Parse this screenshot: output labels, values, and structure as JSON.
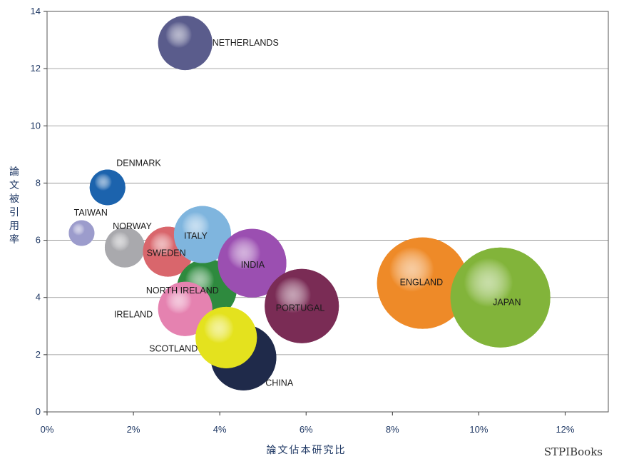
{
  "chart_data": {
    "type": "bubble",
    "xlabel": "論文佔本研究比",
    "ylabel": "論文被引用率",
    "xlim": [
      0,
      13
    ],
    "ylim": [
      0,
      14
    ],
    "x_ticks": [
      "0%",
      "2%",
      "4%",
      "6%",
      "8%",
      "10%",
      "12%"
    ],
    "y_ticks": [
      "0",
      "2",
      "4",
      "6",
      "8",
      "10",
      "12",
      "14"
    ],
    "grid": "horizontal",
    "series": [
      {
        "name": "NETHERLANDS",
        "x": 3.2,
        "y": 12.9,
        "size": 38,
        "color": "#5a5c8c"
      },
      {
        "name": "DENMARK",
        "x": 1.4,
        "y": 7.85,
        "size": 25,
        "color": "#1c63ad"
      },
      {
        "name": "TAIWAN",
        "x": 0.8,
        "y": 6.25,
        "size": 18,
        "color": "#9c9ccc"
      },
      {
        "name": "NORWAY",
        "x": 1.8,
        "y": 5.75,
        "size": 28,
        "color": "#a9a9ad"
      },
      {
        "name": "SWEDEN",
        "x": 2.8,
        "y": 5.6,
        "size": 35,
        "color": "#d9666c"
      },
      {
        "name": "NORTH IRELAND",
        "x": 3.7,
        "y": 4.3,
        "size": 42,
        "color": "#2e8a3e"
      },
      {
        "name": "IRELAND",
        "x": 3.2,
        "y": 3.6,
        "size": 38,
        "color": "#e582b0"
      },
      {
        "name": "ITALY",
        "x": 3.6,
        "y": 6.2,
        "size": 40,
        "color": "#7fb5de"
      },
      {
        "name": "INDIA",
        "x": 4.75,
        "y": 5.2,
        "size": 48,
        "color": "#9b4fb1"
      },
      {
        "name": "PORTUGAL",
        "x": 5.9,
        "y": 3.7,
        "size": 52,
        "color": "#7a2c55"
      },
      {
        "name": "CHINA",
        "x": 4.55,
        "y": 1.9,
        "size": 46,
        "color": "#1f2a4a"
      },
      {
        "name": "SCOTLAND",
        "x": 4.15,
        "y": 2.6,
        "size": 43,
        "color": "#e4e21e"
      },
      {
        "name": "ENGLAND",
        "x": 8.7,
        "y": 4.5,
        "size": 64,
        "color": "#ee8a28"
      },
      {
        "name": "JAPAN",
        "x": 10.5,
        "y": 4.0,
        "size": 70,
        "color": "#82b43a"
      }
    ]
  },
  "watermark": "STPIBooks"
}
